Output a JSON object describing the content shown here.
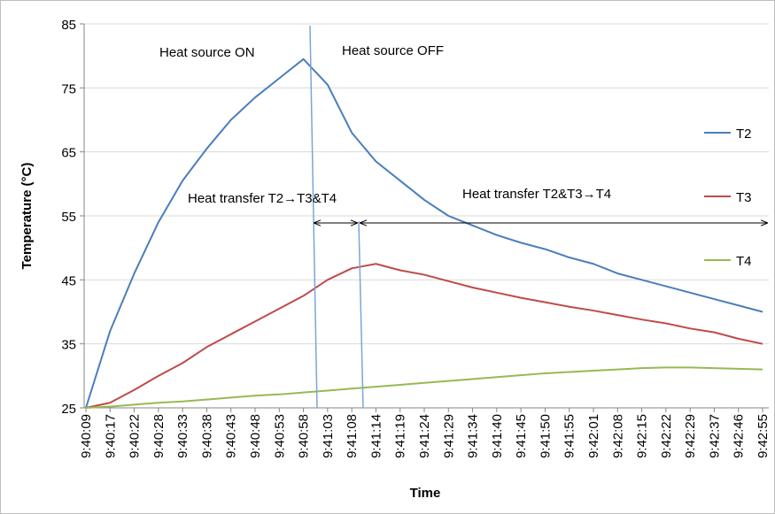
{
  "chart_data": {
    "type": "line",
    "y_label": "Temperature (°C)",
    "x_label": "Time",
    "categories": [
      "9:40:09",
      "9:40:17",
      "9:40:22",
      "9:40:28",
      "9:40:33",
      "9:40:38",
      "9:40:43",
      "9:40:48",
      "9:40:53",
      "9:40:58",
      "9:41:03",
      "9:41:08",
      "9:41:14",
      "9:41:19",
      "9:41:24",
      "9:41:29",
      "9:41:34",
      "9:41:40",
      "9:41:45",
      "9:41:50",
      "9:41:55",
      "9:42:01",
      "9:42:08",
      "9:42:15",
      "9:42:22",
      "9:42:29",
      "9:42:37",
      "9:42:46",
      "9:42:55"
    ],
    "series": [
      {
        "name": "T2",
        "color": "#4a7ebb",
        "values": [
          25,
          37,
          46,
          54,
          60.5,
          65.5,
          70,
          73.5,
          76.5,
          79.5,
          75.5,
          68,
          63.5,
          60.5,
          57.5,
          55,
          53.5,
          52,
          50.8,
          49.8,
          48.5,
          47.5,
          46,
          45,
          44,
          43,
          42,
          41,
          40
        ]
      },
      {
        "name": "T3",
        "color": "#be4b48",
        "values": [
          25,
          25.8,
          27.8,
          30,
          32,
          34.5,
          36.5,
          38.5,
          40.5,
          42.5,
          45,
          46.8,
          47.5,
          46.5,
          45.8,
          44.8,
          43.8,
          43,
          42.2,
          41.5,
          40.8,
          40.2,
          39.5,
          38.8,
          38.2,
          37.4,
          36.8,
          35.8,
          35
        ]
      },
      {
        "name": "T4",
        "color": "#98b954",
        "values": [
          25,
          25.2,
          25.5,
          25.8,
          26,
          26.3,
          26.6,
          26.9,
          27.1,
          27.4,
          27.7,
          28,
          28.3,
          28.6,
          28.9,
          29.2,
          29.5,
          29.8,
          30.1,
          30.4,
          30.6,
          30.8,
          31,
          31.2,
          31.3,
          31.3,
          31.2,
          31.1,
          31
        ]
      }
    ],
    "annotations": [
      "Heat source ON",
      "Heat source OFF",
      "Heat transfer T2→T3&T4",
      "Heat transfer T2&T3→T4"
    ],
    "ylim": [
      25,
      85
    ],
    "yticks": [
      25,
      35,
      45,
      55,
      65,
      75,
      85
    ],
    "grid": true,
    "legend": "right"
  }
}
